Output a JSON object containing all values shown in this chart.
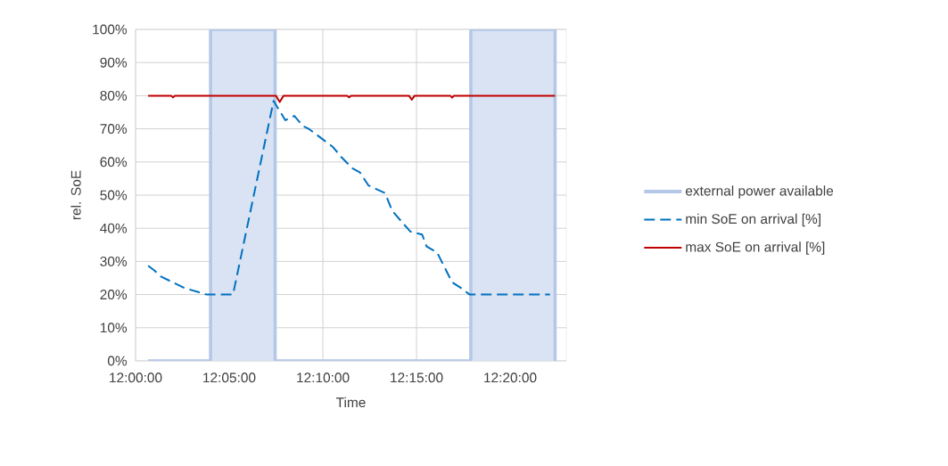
{
  "chart_data": {
    "type": "line",
    "xlabel": "Time",
    "ylabel": "rel. SoE",
    "xlim": [
      12,
      12.3833
    ],
    "ylim": [
      0,
      100
    ],
    "xticks": [
      {
        "value": 12,
        "label": "12:00:00"
      },
      {
        "value": 12.0833,
        "label": "12:05:00"
      },
      {
        "value": 12.1667,
        "label": "12:10:00"
      },
      {
        "value": 12.25,
        "label": "12:15:00"
      },
      {
        "value": 12.3333,
        "label": "12:20:00"
      }
    ],
    "yticks": [
      {
        "value": 0,
        "label": "0%"
      },
      {
        "value": 10,
        "label": "10%"
      },
      {
        "value": 20,
        "label": "20%"
      },
      {
        "value": 30,
        "label": "30%"
      },
      {
        "value": 40,
        "label": "40%"
      },
      {
        "value": 50,
        "label": "50%"
      },
      {
        "value": 60,
        "label": "60%"
      },
      {
        "value": 70,
        "label": "70%"
      },
      {
        "value": 80,
        "label": "80%"
      },
      {
        "value": 90,
        "label": "90%"
      },
      {
        "value": 100,
        "label": "100%"
      }
    ],
    "grid": true,
    "legend": "right",
    "series": [
      {
        "name": "external power available",
        "type": "area",
        "color": "#b4c7e7",
        "x": [
          12.0112,
          12.0667,
          12.0667,
          12.1242,
          12.1242,
          12.2983,
          12.2983,
          12.3733,
          12.3733
        ],
        "values": [
          0,
          0,
          100,
          100,
          0,
          0,
          100,
          100,
          0
        ]
      },
      {
        "name": "min SoE on arrival [%]",
        "color": "#0070c0",
        "line_style": "dashed",
        "x": [
          12.0112,
          12.0167,
          12.0222,
          12.0433,
          12.0633,
          12.0867,
          12.1228,
          12.1333,
          12.1413,
          12.1492,
          12.1545,
          12.1757,
          12.1833,
          12.1933,
          12.1995,
          12.2073,
          12.222,
          12.2285,
          12.2445,
          12.255,
          12.259,
          12.2683,
          12.2817,
          12.2895,
          12.2973,
          12.3688
        ],
        "values": [
          28.7,
          27.3,
          25.5,
          22,
          20,
          20,
          78.4,
          72.6,
          73.9,
          70.8,
          69.9,
          64.5,
          61.4,
          58,
          56.9,
          52.9,
          50.6,
          45.2,
          39,
          38.1,
          34.5,
          32.7,
          23.7,
          22,
          20,
          20
        ]
      },
      {
        "name": "max SoE on arrival [%]",
        "color": "#c00000",
        "line_style": "solid",
        "x": [
          12.0112,
          12.0317,
          12.0333,
          12.035,
          12.125,
          12.1283,
          12.1317,
          12.1883,
          12.19,
          12.1917,
          12.2433,
          12.2458,
          12.2483,
          12.28,
          12.2817,
          12.2833,
          12.3733
        ],
        "values": [
          80,
          80,
          79.5,
          80,
          80,
          78.1,
          80,
          80,
          79.5,
          80,
          80,
          78.8,
          80,
          80,
          79.4,
          80,
          80
        ]
      }
    ]
  }
}
